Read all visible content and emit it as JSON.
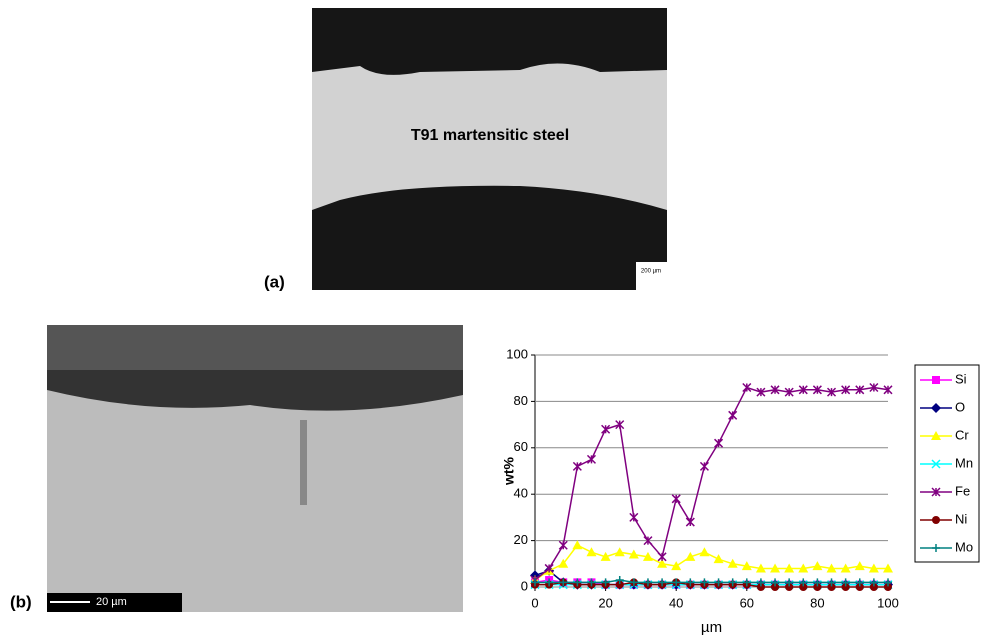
{
  "figure": {
    "panel_a": "(a)",
    "panel_b": "(b)",
    "steel_label": "T91 martensitic steel",
    "scale_a": "200 µm",
    "scale_b": "20 µm"
  },
  "chart_data": {
    "type": "line",
    "x_label": "µm",
    "y_label": "wt%",
    "x": [
      0,
      4,
      8,
      12,
      16,
      20,
      24,
      28,
      32,
      36,
      40,
      44,
      48,
      52,
      56,
      60,
      64,
      68,
      72,
      76,
      80,
      84,
      88,
      92,
      96,
      100
    ],
    "xlim": [
      0,
      100
    ],
    "xticks": [
      0,
      20,
      40,
      60,
      80,
      100
    ],
    "ylim": [
      0,
      100
    ],
    "yticks": [
      0,
      20,
      40,
      60,
      80,
      100
    ],
    "grid": true,
    "legend": "right",
    "series": [
      {
        "name": "Si",
        "color": "#ff00ff",
        "marker": "square",
        "values": [
          2,
          3,
          2,
          2,
          2,
          1,
          1,
          1,
          1,
          1,
          1,
          1,
          1,
          1,
          1,
          1,
          1,
          1,
          1,
          1,
          1,
          1,
          1,
          1,
          1,
          1
        ]
      },
      {
        "name": "O",
        "color": "#000080",
        "marker": "diamond",
        "values": [
          5,
          7,
          2,
          1,
          1,
          1,
          1,
          1,
          1,
          1,
          1,
          1,
          1,
          1,
          1,
          1,
          1,
          1,
          1,
          1,
          1,
          1,
          1,
          1,
          1,
          1
        ]
      },
      {
        "name": "Cr",
        "color": "#ffff00",
        "marker": "triangle",
        "values": [
          3,
          7,
          10,
          18,
          15,
          13,
          15,
          14,
          13,
          10,
          9,
          13,
          15,
          12,
          10,
          9,
          8,
          8,
          8,
          8,
          9,
          8,
          8,
          9,
          8,
          8
        ]
      },
      {
        "name": "Mn",
        "color": "#00ffff",
        "marker": "x",
        "values": [
          1,
          1,
          1,
          1,
          1,
          1,
          1,
          1,
          1,
          1,
          1,
          1,
          1,
          1,
          1,
          1,
          1,
          1,
          1,
          1,
          1,
          1,
          1,
          1,
          1,
          1
        ]
      },
      {
        "name": "Fe",
        "color": "#800080",
        "marker": "star",
        "values": [
          3,
          8,
          18,
          52,
          55,
          68,
          70,
          30,
          20,
          13,
          38,
          28,
          52,
          62,
          74,
          86,
          84,
          85,
          84,
          85,
          85,
          84,
          85,
          85,
          86,
          85
        ]
      },
      {
        "name": "Ni",
        "color": "#800000",
        "marker": "circle",
        "values": [
          1,
          1,
          2,
          1,
          1,
          1,
          1,
          2,
          1,
          1,
          2,
          1,
          1,
          1,
          1,
          1,
          0,
          0,
          0,
          0,
          0,
          0,
          0,
          0,
          0,
          0
        ]
      },
      {
        "name": "Mo",
        "color": "#008080",
        "marker": "plus",
        "values": [
          2,
          2,
          2,
          2,
          2,
          2,
          3,
          2,
          2,
          2,
          2,
          2,
          2,
          2,
          2,
          2,
          2,
          2,
          2,
          2,
          2,
          2,
          2,
          2,
          2,
          2
        ]
      }
    ]
  }
}
